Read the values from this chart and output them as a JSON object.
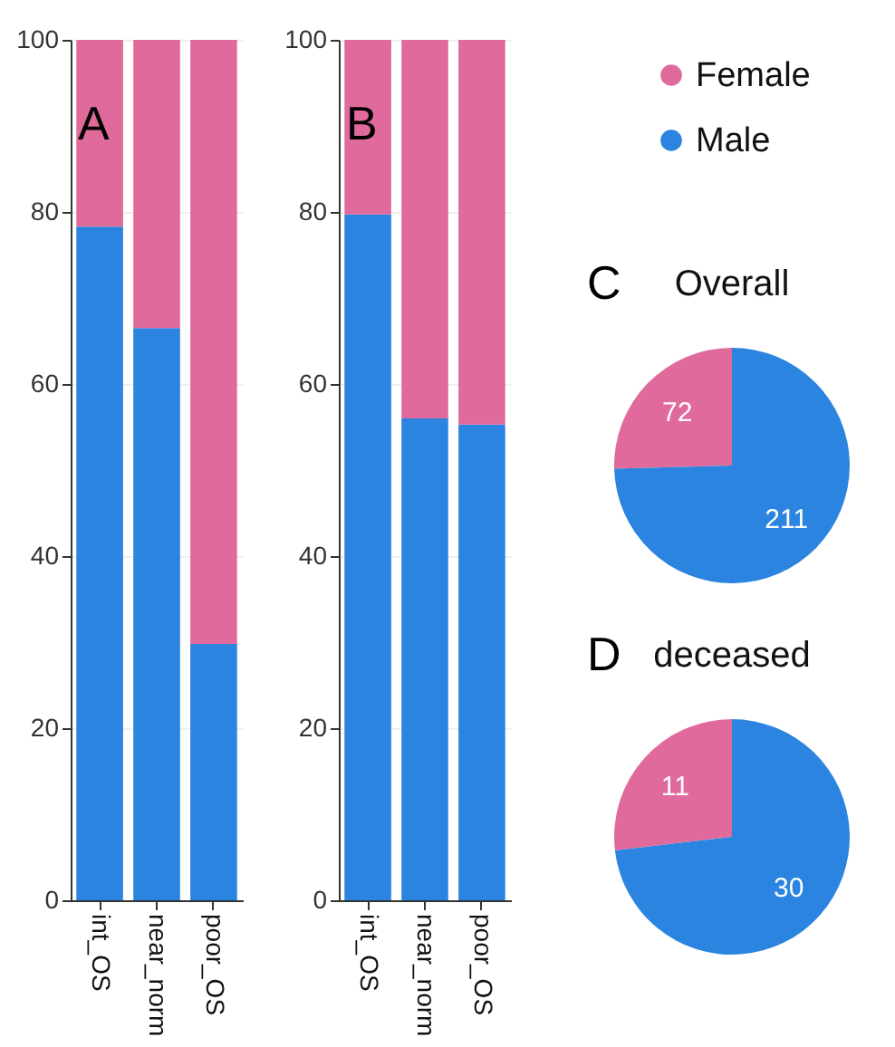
{
  "chart_data": [
    {
      "type": "bar",
      "stacked": true,
      "annotations": [
        "A"
      ],
      "categories": [
        "int_OS",
        "near_norm",
        "poor_OS"
      ],
      "ylim": [
        0,
        100
      ],
      "yticks": [
        0,
        20,
        40,
        60,
        80,
        100
      ],
      "grid": "y",
      "legend": "right",
      "series": [
        {
          "name": "Male",
          "color": "#2a84e0",
          "values": [
            78.3,
            66.5,
            29.8
          ]
        },
        {
          "name": "Female",
          "color": "#e06a9b",
          "values": [
            21.7,
            33.5,
            70.2
          ]
        }
      ]
    },
    {
      "type": "bar",
      "stacked": true,
      "annotations": [
        "B"
      ],
      "categories": [
        "int_OS",
        "near_norm",
        "poor_OS"
      ],
      "ylim": [
        0,
        100
      ],
      "yticks": [
        0,
        20,
        40,
        60,
        80,
        100
      ],
      "grid": "y",
      "series": [
        {
          "name": "Male",
          "color": "#2a84e0",
          "values": [
            79.7,
            56,
            55.3
          ]
        },
        {
          "name": "Female",
          "color": "#e06a9b",
          "values": [
            20.3,
            44,
            44.7
          ]
        }
      ]
    },
    {
      "type": "pie",
      "title": "Overall",
      "annotations": [
        "C"
      ],
      "categories": [
        null,
        null
      ],
      "values": [
        72,
        211
      ],
      "colors": [
        "#e06a9b",
        "#2a84e0"
      ],
      "data_labels": true
    },
    {
      "type": "pie",
      "title": "deceased",
      "annotations": [
        "D"
      ],
      "categories": [
        null,
        null
      ],
      "values": [
        11,
        30
      ],
      "colors": [
        "#e06a9b",
        "#2a84e0"
      ],
      "data_labels": true
    }
  ]
}
